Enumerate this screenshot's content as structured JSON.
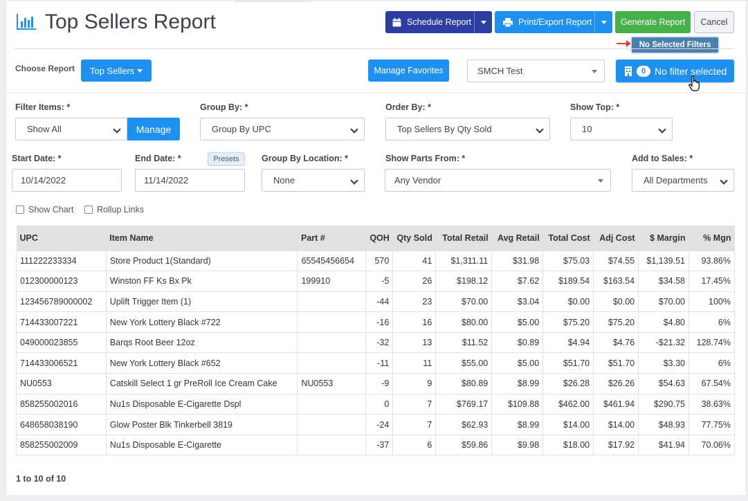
{
  "header": {
    "title": "Top Sellers Report",
    "schedule_label": "Schedule Report",
    "print_label": "Print/Export Report",
    "generate_label": "Generate Report",
    "cancel_label": "Cancel",
    "tooltip": "No Selected Filters"
  },
  "report_bar": {
    "choose_label": "Choose Report",
    "report_value": "Top Sellers",
    "favorites_label": "Manage Favorites",
    "store_value": "SMCH Test",
    "filter_count": "0",
    "filter_label": "No filter selected"
  },
  "filters": {
    "filter_items_label": "Filter Items: *",
    "filter_items_value": "Show All",
    "manage_label": "Manage",
    "group_by_label": "Group By: *",
    "group_by_value": "Group By UPC",
    "order_by_label": "Order By: *",
    "order_by_value": "Top Sellers By Qty Sold",
    "show_top_label": "Show Top: *",
    "show_top_value": "10",
    "start_date_label": "Start Date: *",
    "start_date_value": "10/14/2022",
    "end_date_label": "End Date: *",
    "end_date_value": "11/14/2022",
    "presets_label": "Presets",
    "group_location_label": "Group By Location: *",
    "group_location_value": "None",
    "parts_from_label": "Show Parts From: *",
    "parts_from_value": "Any Vendor",
    "add_sales_label": "Add to Sales: *",
    "add_sales_value": "All Departments",
    "show_chart_label": "Show Chart",
    "rollup_label": "Rollup Links"
  },
  "table": {
    "columns": [
      "UPC",
      "Item Name",
      "Part #",
      "QOH",
      "Qty Sold",
      "Total Retail",
      "Avg Retail",
      "Total Cost",
      "Adj Cost",
      "$ Margin",
      "% Mgn"
    ],
    "rows": [
      [
        "111222233334",
        "Store Product 1(Standard)",
        "65545456654",
        "570",
        "41",
        "$1,311.11",
        "$31.98",
        "$75.03",
        "$74.55",
        "$1,139.51",
        "93.86%"
      ],
      [
        "012300000123",
        "Winston FF Ks Bx Pk",
        "199910",
        "-5",
        "26",
        "$198.12",
        "$7.62",
        "$189.54",
        "$163.54",
        "$34.58",
        "17.45%"
      ],
      [
        "123456789000002",
        "Uplift Trigger Item (1)",
        "",
        "-44",
        "23",
        "$70.00",
        "$3.04",
        "$0.00",
        "$0.00",
        "$70.00",
        "100%"
      ],
      [
        "714433007221",
        "New York Lottery Black #722",
        "",
        "-16",
        "16",
        "$80.00",
        "$5.00",
        "$75.20",
        "$75.20",
        "$4.80",
        "6%"
      ],
      [
        "049000023855",
        "Barqs Root Beer 12oz",
        "",
        "-32",
        "13",
        "$11.52",
        "$0.89",
        "$4.94",
        "$4.76",
        "-$21.32",
        "128.74%"
      ],
      [
        "714433006521",
        "New York Lottery Black #652",
        "",
        "-11",
        "11",
        "$55.00",
        "$5.00",
        "$51.70",
        "$51.70",
        "$3.30",
        "6%"
      ],
      [
        "NU0553",
        "Catskill Select 1 gr PreRoll Ice Cream Cake",
        "NU0553",
        "-9",
        "9",
        "$80.89",
        "$8.99",
        "$26.28",
        "$26.26",
        "$54.63",
        "67.54%"
      ],
      [
        "858255002016",
        "Nu1s Disposable E-Cigarette Dspl",
        "",
        "0",
        "7",
        "$769.17",
        "$109.88",
        "$462.00",
        "$461.94",
        "$290.75",
        "38.63%"
      ],
      [
        "648658038190",
        "Glow Poster Blk Tinkerbell 3819",
        "",
        "-24",
        "7",
        "$62.93",
        "$8.99",
        "$14.00",
        "$14.00",
        "$48.93",
        "77.75%"
      ],
      [
        "858255002009",
        "Nu1s Disposable E-Cigarette",
        "",
        "-37",
        "6",
        "$59.86",
        "$9.98",
        "$18.00",
        "$17.92",
        "$41.94",
        "70.06%"
      ]
    ],
    "pagination": "1 to 10 of 10"
  },
  "colors": {
    "navy": "#2d3ea2",
    "blue": "#1e90f0",
    "green": "#46b14a",
    "title_icon": "#1e90f0"
  },
  "icons": {
    "title": "bar-chart-icon",
    "schedule": "calendar-icon",
    "print": "printer-icon",
    "filter": "building-icon",
    "pointer": "hand-cursor-icon",
    "annotation": "red-arrow-icon"
  }
}
